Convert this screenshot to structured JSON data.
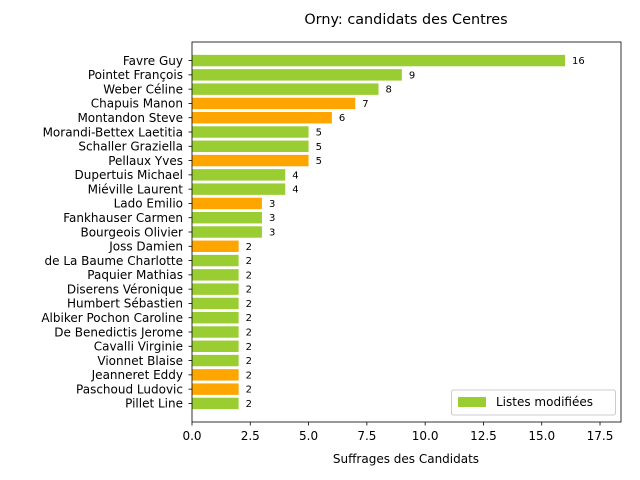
{
  "chart_data": {
    "type": "bar",
    "orientation": "horizontal",
    "title": "Orny: candidats des Centres",
    "xlabel": "Suffrages des Candidats",
    "ylabel": "",
    "xlim": [
      0,
      18.4
    ],
    "x_ticks": [
      "0.0",
      "2.5",
      "5.0",
      "7.5",
      "10.0",
      "12.5",
      "15.0",
      "17.5"
    ],
    "grid": false,
    "legend_position": "lower-right",
    "colors": {
      "listes_modifiees": "#9acd32",
      "other": "#ffa500"
    },
    "legend": [
      {
        "label": "Listes modifiées",
        "color": "#9acd32"
      }
    ],
    "categories": [
      "Favre Guy",
      "Pointet François",
      "Weber Céline",
      "Chapuis Manon",
      "Montandon Steve",
      "Morandi-Bettex Laetitia",
      "Schaller Graziella",
      "Pellaux Yves",
      "Dupertuis Michael",
      "Miéville Laurent",
      "Lado Emilio",
      "Fankhauser Carmen",
      "Bourgeois Olivier",
      "Joss Damien",
      "de La Baume Charlotte",
      "Paquier Mathias",
      "Diserens Véronique",
      "Humbert Sébastien",
      "Albiker Pochon Caroline",
      "De Benedictis Jerome",
      "Cavalli Virginie",
      "Vionnet Blaise",
      "Jeanneret Eddy",
      "Paschoud Ludovic",
      "Pillet Line"
    ],
    "values": [
      16,
      9,
      8,
      7,
      6,
      5,
      5,
      5,
      4,
      4,
      3,
      3,
      3,
      2,
      2,
      2,
      2,
      2,
      2,
      2,
      2,
      2,
      2,
      2,
      2
    ],
    "bar_colors": [
      "#9acd32",
      "#9acd32",
      "#9acd32",
      "#ffa500",
      "#ffa500",
      "#9acd32",
      "#9acd32",
      "#ffa500",
      "#9acd32",
      "#9acd32",
      "#ffa500",
      "#9acd32",
      "#9acd32",
      "#ffa500",
      "#9acd32",
      "#9acd32",
      "#9acd32",
      "#9acd32",
      "#9acd32",
      "#9acd32",
      "#9acd32",
      "#9acd32",
      "#ffa500",
      "#ffa500",
      "#9acd32"
    ]
  }
}
